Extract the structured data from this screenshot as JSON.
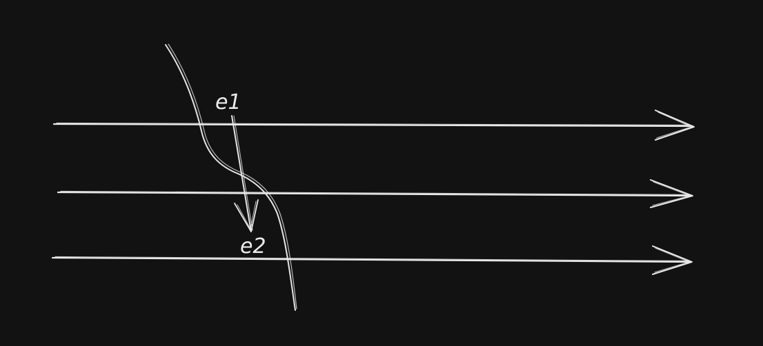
{
  "diagram": {
    "background_color": "#121212",
    "stroke_color": "#e8e8e8",
    "labels": {
      "e1": "e1",
      "e2": "e2"
    },
    "elements": {
      "horizontal_arrows": [
        "top-arrow",
        "middle-arrow",
        "bottom-arrow"
      ],
      "curve": "wavy-curve",
      "vector_arrow": "e1-to-e2-arrow"
    }
  }
}
